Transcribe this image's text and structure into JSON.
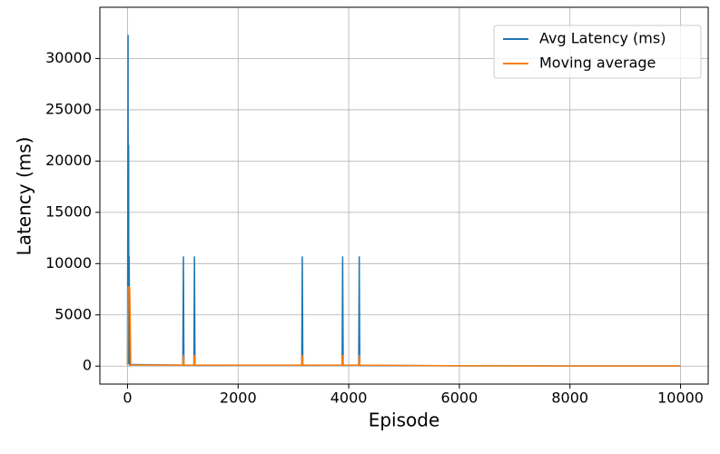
{
  "chart_data": {
    "type": "line",
    "x_label": "Episode",
    "y_label": "Latency (ms)",
    "x": [
      0,
      10,
      15,
      20,
      25,
      30,
      40,
      60,
      1000,
      1010,
      1020,
      1200,
      1210,
      1220,
      3150,
      3160,
      3170,
      3880,
      3890,
      3900,
      4180,
      4190,
      4200,
      6000,
      8000,
      10000
    ],
    "series": [
      {
        "name": "Avg Latency (ms)",
        "color": "#1f77b4",
        "values": [
          100,
          32300,
          300,
          21600,
          200,
          10700,
          100,
          150,
          100,
          10700,
          80,
          100,
          10700,
          80,
          100,
          10700,
          80,
          100,
          10700,
          80,
          100,
          10700,
          80,
          30,
          20,
          20
        ]
      },
      {
        "name": "Moving average",
        "color": "#ff7f0e",
        "values": [
          100,
          7700,
          7700,
          7700,
          7700,
          7700,
          7600,
          100,
          100,
          1100,
          100,
          100,
          1100,
          100,
          100,
          1100,
          100,
          100,
          1100,
          100,
          100,
          1100,
          100,
          30,
          20,
          20
        ]
      }
    ],
    "xlim": [
      -500,
      10500
    ],
    "xticks": [
      0,
      2000,
      4000,
      6000,
      8000,
      10000
    ],
    "ylim": [
      -1750,
      35000
    ],
    "yticks": [
      0,
      5000,
      10000,
      15000,
      20000,
      25000,
      30000
    ],
    "grid": true,
    "legend": "upper right"
  }
}
